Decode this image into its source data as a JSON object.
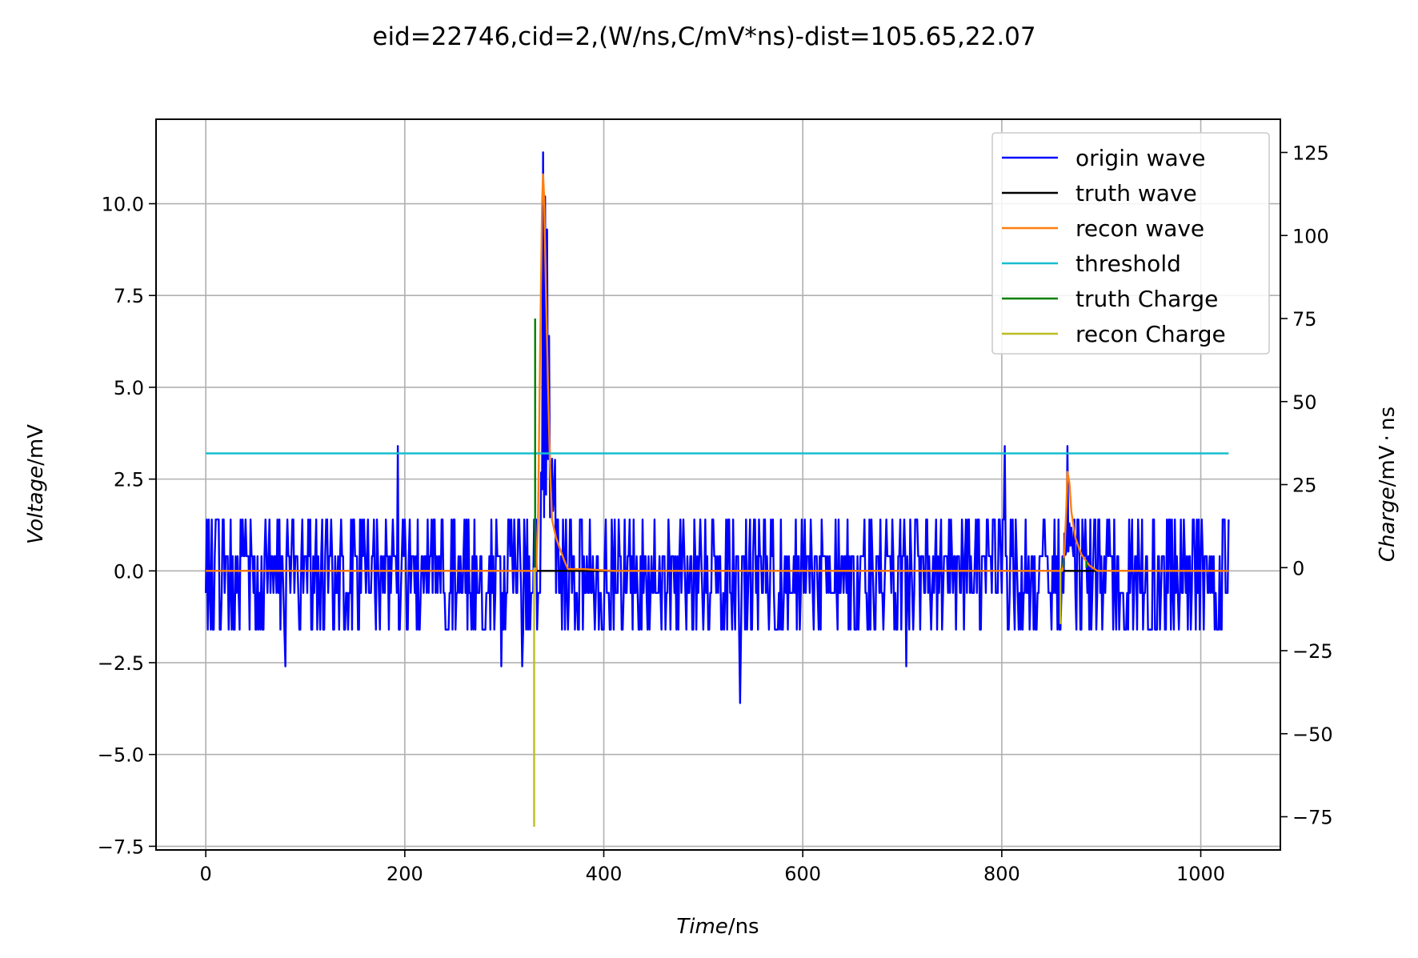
{
  "chart_data": {
    "type": "line",
    "title": "eid=22746,cid=2,(W/ns,C/mV*ns)-dist=105.65,22.07",
    "xlabel": {
      "italic": "Time",
      "unit": "/ns"
    },
    "ylabel_left": {
      "italic": "Voltage",
      "unit": "/mV"
    },
    "ylabel_right": {
      "italic": "Charge",
      "unit": "/mV · ns"
    },
    "xlim": [
      -50,
      1080
    ],
    "ylim_left": [
      -7.6,
      12.3
    ],
    "ylim_right": [
      -85,
      135
    ],
    "xticks": [
      0,
      200,
      400,
      600,
      800,
      1000
    ],
    "xtick_labels": [
      "0",
      "200",
      "400",
      "600",
      "800",
      "1000"
    ],
    "yticks_left": [
      -7.5,
      -5.0,
      -2.5,
      0.0,
      2.5,
      5.0,
      7.5,
      10.0
    ],
    "ytick_labels_left": [
      "−7.5",
      "−5.0",
      "−2.5",
      "0.0",
      "2.5",
      "5.0",
      "7.5",
      "10.0"
    ],
    "yticks_right": [
      -75,
      -50,
      -25,
      0,
      25,
      50,
      75,
      100,
      125
    ],
    "ytick_labels_right": [
      "−75",
      "−50",
      "−25",
      "0",
      "25",
      "50",
      "75",
      "100",
      "125"
    ],
    "grid": true,
    "legend_position": "upper-right",
    "series": [
      {
        "name": "origin wave",
        "color": "#0000ff",
        "axis": "left",
        "x_start": 0,
        "x_end": 1028,
        "baseline_levels": [
          -1.6,
          -0.6,
          0.4,
          1.4
        ],
        "peaks": [
          [
            339,
            11.4
          ],
          [
            341,
            10.2
          ],
          [
            343,
            9.3
          ],
          [
            345,
            6.4
          ],
          [
            866,
            3.4
          ],
          [
            193,
            3.4
          ],
          [
            803,
            3.4
          ],
          [
            537,
            -3.6
          ],
          [
            80,
            -2.6
          ],
          [
            297,
            -2.6
          ],
          [
            318,
            -2.6
          ],
          [
            704,
            -2.6
          ]
        ]
      },
      {
        "name": "truth wave",
        "color": "#000000",
        "axis": "left",
        "x": [
          0,
          862,
          864,
          884,
          886,
          1028
        ],
        "y": [
          0,
          0,
          0,
          0,
          0,
          0
        ]
      },
      {
        "name": "recon wave",
        "color": "#ff7f0e",
        "axis": "left",
        "x": [
          0,
          332,
          334,
          336,
          338,
          339,
          340,
          342,
          344,
          346,
          348,
          352,
          356,
          360,
          364,
          380,
          410,
          861,
          863,
          865,
          866,
          868,
          870,
          874,
          880,
          888,
          896,
          1028
        ],
        "y": [
          0,
          0,
          1.5,
          6.0,
          10.0,
          10.8,
          10.2,
          7.5,
          5.0,
          2.8,
          1.4,
          0.9,
          0.6,
          0.3,
          0.05,
          0.05,
          0,
          0,
          0.5,
          1.8,
          2.7,
          2.4,
          1.6,
          0.9,
          0.45,
          0.15,
          0,
          0
        ]
      },
      {
        "name": "threshold",
        "color": "#17becf",
        "axis": "left",
        "x": [
          0,
          1028
        ],
        "y": [
          3.2,
          3.2
        ]
      },
      {
        "name": "truth Charge",
        "color": "#008000",
        "axis": "right",
        "stems": [
          [
            331,
            75
          ],
          [
            862,
            3
          ],
          [
            885,
            2
          ]
        ]
      },
      {
        "name": "recon Charge",
        "color": "#bcbd22",
        "axis": "right",
        "stems": [
          [
            330,
            -78
          ],
          [
            859,
            -17
          ]
        ]
      }
    ]
  }
}
